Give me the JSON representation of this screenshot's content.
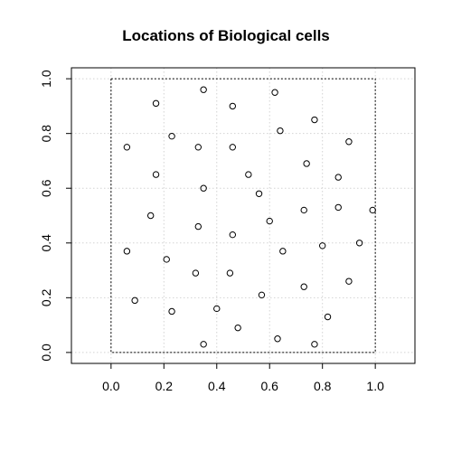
{
  "chart_data": {
    "type": "scatter",
    "title": "Locations of Biological cells",
    "xlabel": "",
    "ylabel": "",
    "xlim": [
      -0.15,
      1.15
    ],
    "ylim": [
      -0.04,
      1.04
    ],
    "x_ticks": [
      "0.0",
      "0.2",
      "0.4",
      "0.6",
      "0.8",
      "1.0"
    ],
    "y_ticks": [
      "0.0",
      "0.2",
      "0.4",
      "0.6",
      "0.8",
      "1.0"
    ],
    "grid": true,
    "window_box": [
      0,
      1,
      0,
      1
    ],
    "points": [
      {
        "x": 0.35,
        "y": 0.96
      },
      {
        "x": 0.62,
        "y": 0.95
      },
      {
        "x": 0.17,
        "y": 0.91
      },
      {
        "x": 0.46,
        "y": 0.9
      },
      {
        "x": 0.77,
        "y": 0.85
      },
      {
        "x": 0.64,
        "y": 0.81
      },
      {
        "x": 0.23,
        "y": 0.79
      },
      {
        "x": 0.9,
        "y": 0.77
      },
      {
        "x": 0.06,
        "y": 0.75
      },
      {
        "x": 0.33,
        "y": 0.75
      },
      {
        "x": 0.46,
        "y": 0.75
      },
      {
        "x": 0.74,
        "y": 0.69
      },
      {
        "x": 0.17,
        "y": 0.65
      },
      {
        "x": 0.52,
        "y": 0.65
      },
      {
        "x": 0.86,
        "y": 0.64
      },
      {
        "x": 0.35,
        "y": 0.6
      },
      {
        "x": 0.56,
        "y": 0.58
      },
      {
        "x": 0.86,
        "y": 0.53
      },
      {
        "x": 0.73,
        "y": 0.52
      },
      {
        "x": 0.99,
        "y": 0.52
      },
      {
        "x": 0.15,
        "y": 0.5
      },
      {
        "x": 0.6,
        "y": 0.48
      },
      {
        "x": 0.33,
        "y": 0.46
      },
      {
        "x": 0.46,
        "y": 0.43
      },
      {
        "x": 0.94,
        "y": 0.4
      },
      {
        "x": 0.8,
        "y": 0.39
      },
      {
        "x": 0.06,
        "y": 0.37
      },
      {
        "x": 0.65,
        "y": 0.37
      },
      {
        "x": 0.21,
        "y": 0.34
      },
      {
        "x": 0.32,
        "y": 0.29
      },
      {
        "x": 0.45,
        "y": 0.29
      },
      {
        "x": 0.9,
        "y": 0.26
      },
      {
        "x": 0.73,
        "y": 0.24
      },
      {
        "x": 0.57,
        "y": 0.21
      },
      {
        "x": 0.09,
        "y": 0.19
      },
      {
        "x": 0.4,
        "y": 0.16
      },
      {
        "x": 0.23,
        "y": 0.15
      },
      {
        "x": 0.82,
        "y": 0.13
      },
      {
        "x": 0.48,
        "y": 0.09
      },
      {
        "x": 0.63,
        "y": 0.05
      },
      {
        "x": 0.35,
        "y": 0.03
      },
      {
        "x": 0.77,
        "y": 0.03
      }
    ]
  },
  "colors": {
    "points": "#000000",
    "grid": "#d3d3d3",
    "frame": "#000000"
  }
}
